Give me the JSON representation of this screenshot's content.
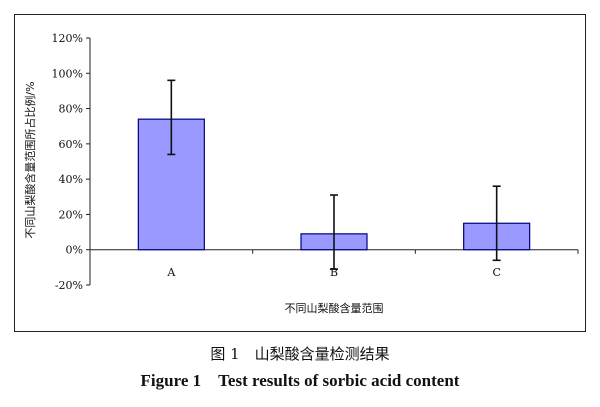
{
  "chart_data": {
    "type": "bar",
    "categories": [
      "A",
      "B",
      "C"
    ],
    "values": [
      0.74,
      0.09,
      0.15
    ],
    "error_high": [
      0.96,
      0.31,
      0.36
    ],
    "error_low": [
      0.54,
      -0.11,
      -0.06
    ],
    "ylim": [
      -0.2,
      1.2
    ],
    "yticks": [
      "120%",
      "100%",
      "80%",
      "60%",
      "40%",
      "20%",
      "0%",
      "-20%"
    ],
    "ytick_values": [
      1.2,
      1.0,
      0.8,
      0.6,
      0.4,
      0.2,
      0.0,
      -0.2
    ],
    "ylabel": "不同山梨酸含量范围所占比例/%",
    "xlabel": "不同山梨酸含量范围",
    "grid": false,
    "bar_color": "#9999ff",
    "bar_edge": "#000080"
  },
  "caption": {
    "cn": "图 1　山梨酸含量检测结果",
    "en": "Figure 1　Test results of sorbic acid content"
  }
}
